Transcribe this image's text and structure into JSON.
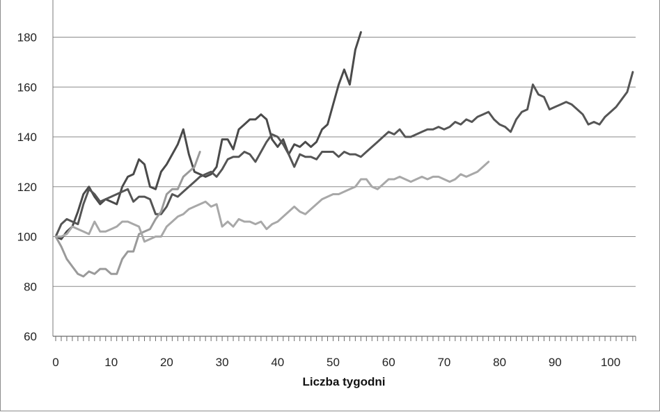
{
  "chart_data": {
    "type": "line",
    "title": "",
    "xlabel": "Liczba tygodni",
    "ylabel": "",
    "xlim": [
      0,
      104
    ],
    "ylim": [
      60,
      190
    ],
    "x_ticks": [
      0,
      10,
      20,
      30,
      40,
      50,
      60,
      70,
      80,
      90,
      100
    ],
    "y_ticks": [
      60,
      80,
      100,
      120,
      140,
      160,
      180
    ],
    "grid": "horizontal",
    "legend": "bottom",
    "series": [
      {
        "color": "#4a4a4a",
        "x": [
          0,
          1,
          2,
          3,
          4,
          5,
          6,
          7,
          8,
          9,
          10,
          11,
          12,
          13,
          14,
          15,
          16,
          17,
          18,
          19,
          20,
          21,
          22,
          23,
          24,
          25,
          26,
          27,
          28,
          29,
          30,
          31,
          32,
          33,
          34,
          35,
          36,
          37,
          38,
          39,
          40,
          41,
          42,
          43,
          44,
          45,
          46,
          47,
          48,
          49,
          50,
          51,
          52,
          53,
          54,
          55
        ],
        "y": [
          100,
          99,
          102,
          104,
          110,
          117,
          120,
          116,
          113,
          115,
          114,
          113,
          120,
          124,
          125,
          131,
          129,
          120,
          119,
          126,
          129,
          133,
          137,
          143,
          133,
          126,
          125,
          124,
          125,
          128,
          139,
          139,
          135,
          143,
          145,
          147,
          147,
          149,
          147,
          139,
          136,
          139,
          133,
          137,
          136,
          138,
          136,
          138,
          143,
          145,
          153,
          161,
          167,
          161,
          175,
          182
        ]
      },
      {
        "color": "#555555",
        "x": [
          0,
          1,
          2,
          3,
          4,
          5,
          6,
          7,
          8,
          9,
          10,
          11,
          12,
          13,
          14,
          15,
          16,
          17,
          18,
          19,
          20,
          21,
          22,
          23,
          24,
          25,
          26,
          27,
          28,
          29,
          30,
          31,
          32,
          33,
          34,
          35,
          36,
          37,
          38,
          39,
          40,
          41,
          42,
          43,
          44,
          45,
          46,
          47,
          48,
          49,
          50,
          51,
          52,
          53,
          54,
          55,
          56,
          57,
          58,
          59,
          60,
          61,
          62,
          63,
          64,
          65,
          66,
          67,
          68,
          69,
          70,
          71,
          72,
          73,
          74,
          75,
          76,
          77,
          78,
          79,
          80,
          81,
          82,
          83,
          84,
          85,
          86,
          87,
          88,
          89,
          90,
          91,
          92,
          93,
          94,
          95,
          96,
          97,
          98,
          99,
          100,
          101,
          102,
          103,
          104
        ],
        "y": [
          100,
          105,
          107,
          106,
          105,
          113,
          119,
          117,
          114,
          115,
          116,
          117,
          118,
          119,
          114,
          116,
          116,
          115,
          109,
          109,
          112,
          117,
          116,
          118,
          120,
          122,
          124,
          125,
          126,
          124,
          127,
          131,
          132,
          132,
          134,
          133,
          130,
          134,
          138,
          141,
          140,
          137,
          133,
          128,
          133,
          132,
          132,
          131,
          134,
          134,
          134,
          132,
          134,
          133,
          133,
          132,
          134,
          136,
          138,
          140,
          142,
          141,
          143,
          140,
          140,
          141,
          142,
          143,
          143,
          144,
          143,
          144,
          146,
          145,
          147,
          146,
          148,
          149,
          150,
          147,
          145,
          144,
          142,
          147,
          150,
          151,
          161,
          157,
          156,
          151,
          152,
          153,
          154,
          153,
          151,
          149,
          145,
          146,
          145,
          148,
          150,
          152,
          155,
          158,
          166
        ]
      },
      {
        "color": "#9a9a9a",
        "x": [
          0,
          1,
          2,
          3,
          4,
          5,
          6,
          7,
          8,
          9,
          10,
          11,
          12,
          13,
          14,
          15,
          16,
          17,
          18,
          19,
          20,
          21,
          22,
          23,
          24,
          25,
          26
        ],
        "y": [
          100,
          96,
          91,
          88,
          85,
          84,
          86,
          85,
          87,
          87,
          85,
          85,
          91,
          94,
          94,
          101,
          102,
          103,
          107,
          110,
          117,
          119,
          119,
          124,
          126,
          128,
          134
        ]
      },
      {
        "color": "#a8a8a8",
        "x": [
          0,
          1,
          2,
          3,
          4,
          5,
          6,
          7,
          8,
          9,
          10,
          11,
          12,
          13,
          14,
          15,
          16,
          17,
          18,
          19,
          20,
          21,
          22,
          23,
          24,
          25,
          26,
          27,
          28,
          29,
          30,
          31,
          32,
          33,
          34,
          35,
          36,
          37,
          38,
          39,
          40,
          41,
          42,
          43,
          44,
          45,
          46,
          47,
          48,
          49,
          50,
          51,
          52,
          53,
          54,
          55,
          56,
          57,
          58,
          59,
          60,
          61,
          62,
          63,
          64,
          65,
          66,
          67,
          68,
          69,
          70,
          71,
          72,
          73,
          74,
          75,
          76,
          77,
          78
        ],
        "y": [
          100,
          100,
          101,
          104,
          103,
          102,
          101,
          106,
          102,
          102,
          103,
          104,
          106,
          106,
          105,
          104,
          98,
          99,
          100,
          100,
          104,
          106,
          108,
          109,
          111,
          112,
          113,
          114,
          112,
          113,
          104,
          106,
          104,
          107,
          106,
          106,
          105,
          106,
          103,
          105,
          106,
          108,
          110,
          112,
          110,
          109,
          111,
          113,
          115,
          116,
          117,
          117,
          118,
          119,
          120,
          123,
          123,
          120,
          119,
          121,
          123,
          123,
          124,
          123,
          122,
          123,
          124,
          123,
          124,
          124,
          123,
          122,
          123,
          125,
          124,
          125,
          126,
          128,
          130
        ]
      }
    ]
  }
}
